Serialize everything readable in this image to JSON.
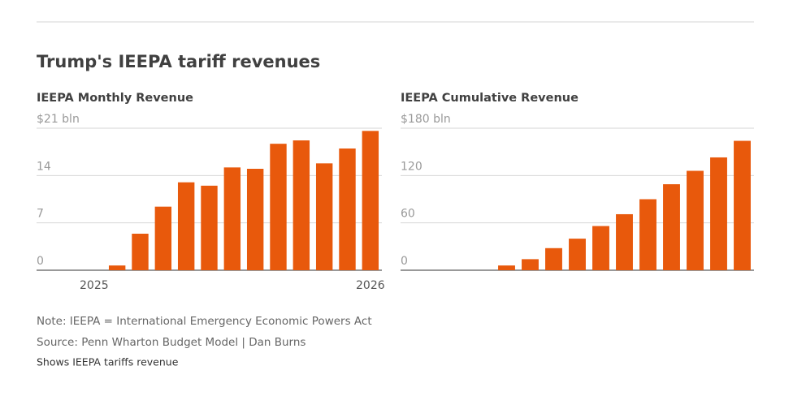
{
  "title": "Trump's IEEPA tariff revenues",
  "chart_data": [
    {
      "type": "bar",
      "title": "IEEPA Monthly Revenue",
      "color": "#e8590c",
      "categories": [
        null,
        null,
        "2025",
        null,
        null,
        null,
        null,
        null,
        null,
        null,
        null,
        null,
        null,
        null,
        "2026"
      ],
      "values": [
        null,
        null,
        null,
        0.7,
        5.4,
        9.4,
        13.0,
        12.5,
        15.2,
        15.0,
        18.7,
        19.2,
        15.8,
        18.0,
        20.6
      ],
      "ylim": [
        0,
        21
      ],
      "yticks": [
        0,
        7,
        14,
        {
          "value": 21,
          "label": "$21 bln"
        }
      ],
      "grid": true
    },
    {
      "type": "bar",
      "title": "IEEPA Cumulative Revenue",
      "color": "#e8590c",
      "categories": [
        null,
        null,
        null,
        null,
        null,
        null,
        null,
        null,
        null,
        null,
        null,
        null,
        null,
        null,
        null
      ],
      "values": [
        null,
        null,
        null,
        null,
        6,
        14,
        28,
        40,
        56,
        71,
        90,
        109,
        126,
        143,
        164
      ],
      "ylim": [
        0,
        180
      ],
      "yticks": [
        0,
        60,
        120,
        {
          "value": 180,
          "label": "$180 bln"
        }
      ],
      "grid": true
    }
  ],
  "notes": [
    "Note: IEEPA = International Emergency Economic Powers Act",
    "Source: Penn Wharton Budget Model | Dan Burns",
    "Shows IEEPA tariffs revenue"
  ]
}
